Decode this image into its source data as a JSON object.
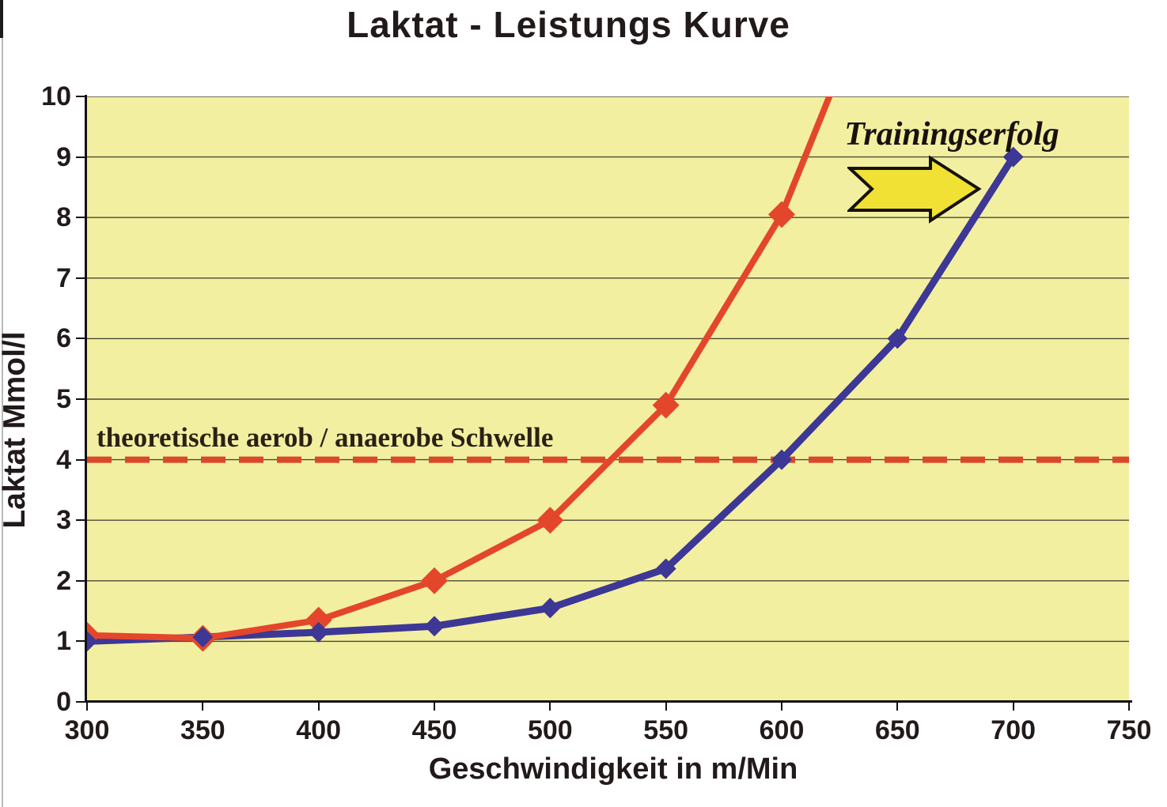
{
  "title": "Laktat - Leistungs Kurve",
  "chart_data": {
    "type": "line",
    "title": "Laktat - Leistungs Kurve",
    "xlabel": "Geschwindigkeit in m/Min",
    "ylabel": "Laktat Mmol/l",
    "xlim": [
      300,
      750
    ],
    "ylim": [
      0,
      10
    ],
    "x_ticks": [
      "300",
      "350",
      "400",
      "450",
      "500",
      "550",
      "600",
      "650",
      "700",
      "750"
    ],
    "y_ticks": [
      "0",
      "1",
      "2",
      "3",
      "4",
      "5",
      "6",
      "7",
      "8",
      "9",
      "10"
    ],
    "grid": "horizontal-only",
    "grid_color": "#4a4a36",
    "plot_bg": "#f3efa1",
    "legend": "none",
    "series": [
      {
        "name": "red-curve",
        "color": "#e4462b",
        "marker": "diamond",
        "marker_size": 17,
        "line_width": 8,
        "points": [
          [
            300,
            1.1
          ],
          [
            350,
            1.05
          ],
          [
            400,
            1.35
          ],
          [
            450,
            2.0
          ],
          [
            500,
            3.0
          ],
          [
            550,
            4.9
          ],
          [
            600,
            8.05
          ]
        ],
        "extension_point": [
          628,
          10.7
        ]
      },
      {
        "name": "blue-curve",
        "color": "#3d3795",
        "marker": "diamond",
        "marker_size": 13,
        "line_width": 9,
        "points": [
          [
            300,
            1.0
          ],
          [
            350,
            1.07
          ],
          [
            400,
            1.15
          ],
          [
            450,
            1.25
          ],
          [
            500,
            1.55
          ],
          [
            550,
            2.2
          ],
          [
            600,
            4.0
          ],
          [
            650,
            6.0
          ],
          [
            700,
            9.0
          ]
        ]
      }
    ],
    "threshold": {
      "y": 4,
      "style": "dashed",
      "color": "#d94829",
      "label": "theoretische aerob / anaerobe Schwelle"
    },
    "annotation": {
      "text": "Trainingserfolg",
      "arrow": "right-block-arrow",
      "arrow_fill": "#f0e134",
      "arrow_outline": "#15120d"
    }
  }
}
